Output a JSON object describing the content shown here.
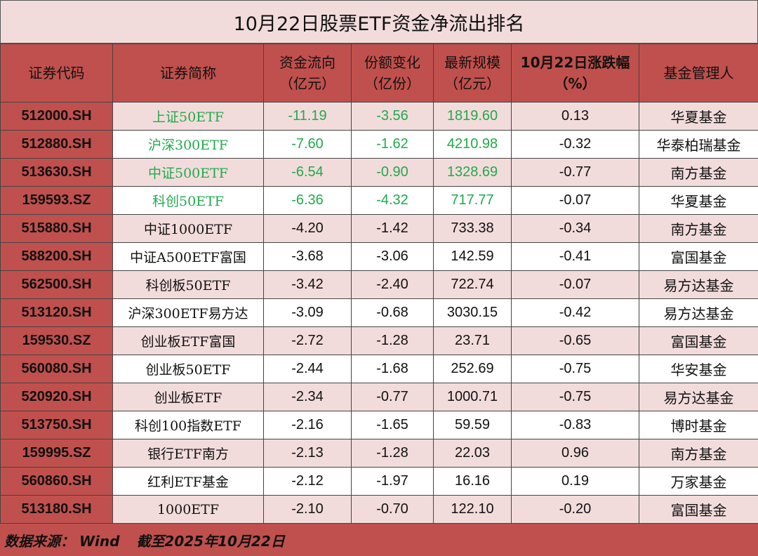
{
  "title": "10月22日股票ETF资金净流出排名",
  "headers": [
    "证券代码",
    "证券简称",
    "资金流向\n（亿元）",
    "份额变化\n（亿份）",
    "最新规模\n（亿元）",
    "10月22日涨跌幅\n（%）",
    "基金管理人"
  ],
  "highlight_color": "#22a94c",
  "rows": [
    {
      "code": "512000.SH",
      "name": "上证50ETF",
      "flow": "-11.19",
      "share": "-3.56",
      "scale": "1819.60",
      "change": "0.13",
      "manager": "华夏基金",
      "highlight": true
    },
    {
      "code": "512880.SH",
      "name": "沪深300ETF",
      "flow": "-7.60",
      "share": "-1.62",
      "scale": "4210.98",
      "change": "-0.32",
      "manager": "华泰柏瑞基金",
      "highlight": true
    },
    {
      "code": "513630.SH",
      "name": "中证500ETF",
      "flow": "-6.54",
      "share": "-0.90",
      "scale": "1328.69",
      "change": "-0.77",
      "manager": "南方基金",
      "highlight": true
    },
    {
      "code": "159593.SZ",
      "name": "科创50ETF",
      "flow": "-6.36",
      "share": "-4.32",
      "scale": "717.77",
      "change": "-0.07",
      "manager": "华夏基金",
      "highlight": true
    },
    {
      "code": "515880.SH",
      "name": "中证1000ETF",
      "flow": "-4.20",
      "share": "-1.42",
      "scale": "733.38",
      "change": "-0.34",
      "manager": "南方基金",
      "highlight": false
    },
    {
      "code": "588200.SH",
      "name": "中证A500ETF富国",
      "flow": "-3.68",
      "share": "-3.06",
      "scale": "142.59",
      "change": "-0.41",
      "manager": "富国基金",
      "highlight": false
    },
    {
      "code": "562500.SH",
      "name": "科创板50ETF",
      "flow": "-3.42",
      "share": "-2.40",
      "scale": "722.74",
      "change": "-0.07",
      "manager": "易方达基金",
      "highlight": false
    },
    {
      "code": "513120.SH",
      "name": "沪深300ETF易方达",
      "flow": "-3.09",
      "share": "-0.68",
      "scale": "3030.15",
      "change": "-0.42",
      "manager": "易方达基金",
      "highlight": false
    },
    {
      "code": "159530.SZ",
      "name": "创业板ETF富国",
      "flow": "-2.72",
      "share": "-1.28",
      "scale": "23.71",
      "change": "-0.65",
      "manager": "富国基金",
      "highlight": false
    },
    {
      "code": "560080.SH",
      "name": "创业板50ETF",
      "flow": "-2.44",
      "share": "-1.68",
      "scale": "252.69",
      "change": "-0.75",
      "manager": "华安基金",
      "highlight": false
    },
    {
      "code": "520920.SH",
      "name": "创业板ETF",
      "flow": "-2.34",
      "share": "-0.77",
      "scale": "1000.71",
      "change": "-0.75",
      "manager": "易方达基金",
      "highlight": false
    },
    {
      "code": "513750.SH",
      "name": "科创100指数ETF",
      "flow": "-2.16",
      "share": "-1.65",
      "scale": "59.59",
      "change": "-0.83",
      "manager": "博时基金",
      "highlight": false
    },
    {
      "code": "159995.SZ",
      "name": "银行ETF南方",
      "flow": "-2.13",
      "share": "-1.28",
      "scale": "22.03",
      "change": "0.96",
      "manager": "南方基金",
      "highlight": false
    },
    {
      "code": "560860.SH",
      "name": "红利ETF基金",
      "flow": "-2.12",
      "share": "-1.97",
      "scale": "16.16",
      "change": "0.19",
      "manager": "万家基金",
      "highlight": false
    },
    {
      "code": "513180.SH",
      "name": "1000ETF",
      "flow": "-2.10",
      "share": "-0.70",
      "scale": "122.10",
      "change": "-0.20",
      "manager": "富国基金",
      "highlight": false
    }
  ],
  "footer": {
    "source": "数据来源： Wind",
    "date": "截至2025年10月22日"
  }
}
